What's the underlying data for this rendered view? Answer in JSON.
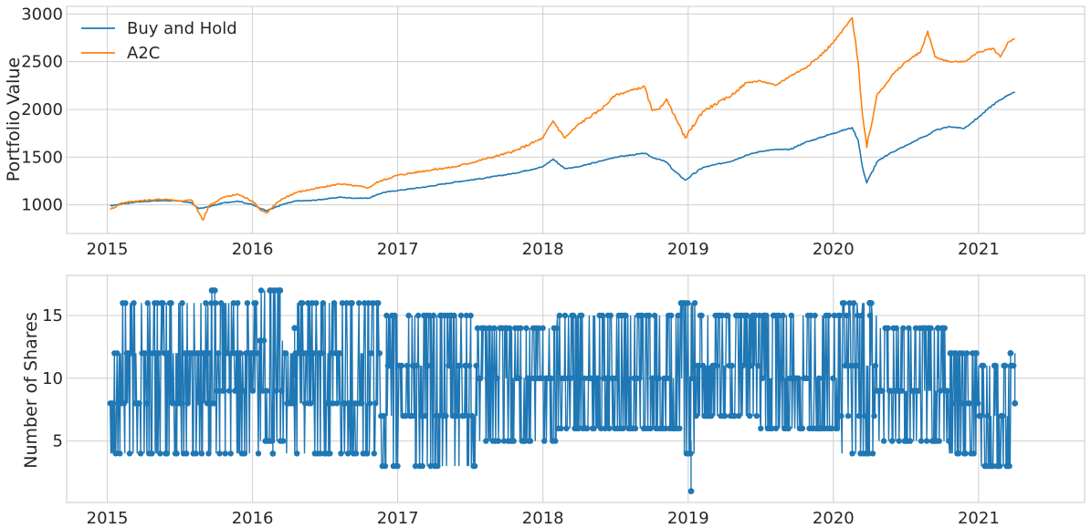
{
  "chart_data": [
    {
      "type": "line",
      "title": "",
      "xlabel": "",
      "ylabel": "Portfolio Value",
      "x_ticks": [
        "2015",
        "2016",
        "2017",
        "2018",
        "2019",
        "2020",
        "2021"
      ],
      "y_ticks": [
        1000,
        1500,
        2000,
        2500,
        3000
      ],
      "xlim": [
        2014.72,
        2021.73
      ],
      "ylim": [
        700,
        3080
      ],
      "grid": true,
      "legend": "top-left",
      "series": [
        {
          "name": "Buy and Hold",
          "color": "#1f77b4",
          "x": [
            2015.02,
            2015.1,
            2015.2,
            2015.3,
            2015.4,
            2015.5,
            2015.58,
            2015.63,
            2015.7,
            2015.8,
            2015.9,
            2016.0,
            2016.06,
            2016.1,
            2016.2,
            2016.3,
            2016.4,
            2016.5,
            2016.6,
            2016.7,
            2016.8,
            2016.85,
            2016.9,
            2017.0,
            2017.2,
            2017.4,
            2017.6,
            2017.8,
            2018.0,
            2018.07,
            2018.15,
            2018.25,
            2018.4,
            2018.5,
            2018.7,
            2018.75,
            2018.85,
            2018.9,
            2018.98,
            2019.1,
            2019.3,
            2019.4,
            2019.5,
            2019.6,
            2019.7,
            2019.8,
            2019.9,
            2020.0,
            2020.13,
            2020.17,
            2020.2,
            2020.23,
            2020.3,
            2020.4,
            2020.5,
            2020.6,
            2020.65,
            2020.7,
            2020.8,
            2020.9,
            2021.0,
            2021.1,
            2021.2,
            2021.25
          ],
          "y": [
            990,
            1010,
            1030,
            1040,
            1045,
            1040,
            1020,
            960,
            980,
            1020,
            1040,
            1000,
            960,
            940,
            1000,
            1040,
            1045,
            1060,
            1080,
            1070,
            1070,
            1100,
            1130,
            1150,
            1190,
            1240,
            1280,
            1330,
            1400,
            1480,
            1380,
            1400,
            1460,
            1500,
            1540,
            1500,
            1450,
            1360,
            1260,
            1390,
            1460,
            1520,
            1560,
            1580,
            1580,
            1650,
            1700,
            1750,
            1810,
            1680,
            1400,
            1230,
            1450,
            1550,
            1620,
            1700,
            1730,
            1780,
            1820,
            1800,
            1920,
            2050,
            2150,
            2180
          ]
        },
        {
          "name": "A2C",
          "color": "#ff7f0e",
          "x": [
            2015.02,
            2015.1,
            2015.2,
            2015.3,
            2015.4,
            2015.5,
            2015.58,
            2015.63,
            2015.66,
            2015.7,
            2015.8,
            2015.9,
            2016.0,
            2016.06,
            2016.1,
            2016.2,
            2016.3,
            2016.4,
            2016.5,
            2016.6,
            2016.7,
            2016.8,
            2016.85,
            2016.9,
            2017.0,
            2017.2,
            2017.4,
            2017.6,
            2017.8,
            2018.0,
            2018.07,
            2018.15,
            2018.25,
            2018.4,
            2018.5,
            2018.7,
            2018.75,
            2018.8,
            2018.85,
            2018.9,
            2018.98,
            2019.1,
            2019.3,
            2019.4,
            2019.5,
            2019.6,
            2019.7,
            2019.8,
            2019.9,
            2020.0,
            2020.1,
            2020.13,
            2020.17,
            2020.2,
            2020.23,
            2020.3,
            2020.4,
            2020.5,
            2020.6,
            2020.65,
            2020.7,
            2020.8,
            2020.9,
            2021.0,
            2021.1,
            2021.15,
            2021.2,
            2021.25
          ],
          "y": [
            950,
            1020,
            1040,
            1050,
            1060,
            1040,
            1050,
            920,
            840,
            990,
            1080,
            1110,
            1040,
            940,
            920,
            1060,
            1130,
            1160,
            1190,
            1220,
            1200,
            1180,
            1230,
            1260,
            1310,
            1360,
            1400,
            1480,
            1560,
            1700,
            1880,
            1700,
            1850,
            2000,
            2150,
            2240,
            1990,
            2000,
            2110,
            1950,
            1700,
            1980,
            2150,
            2280,
            2300,
            2250,
            2350,
            2430,
            2550,
            2700,
            2900,
            2960,
            2500,
            1950,
            1600,
            2150,
            2350,
            2500,
            2600,
            2820,
            2550,
            2500,
            2500,
            2600,
            2640,
            2550,
            2700,
            2740
          ]
        }
      ]
    },
    {
      "type": "line",
      "title": "",
      "xlabel": "",
      "ylabel": "Number of Shares",
      "x_ticks": [
        "2015",
        "2016",
        "2017",
        "2018",
        "2019",
        "2020",
        "2021"
      ],
      "y_ticks": [
        5,
        10,
        15
      ],
      "xlim": [
        2014.72,
        2021.73
      ],
      "ylim": [
        0.1,
        18.2
      ],
      "grid": true,
      "legend": "none",
      "marker": "o",
      "series": [
        {
          "color": "#1f77b4",
          "segments": [
            {
              "x0": 2015.02,
              "x1": 2015.75,
              "levels": [
                4,
                8,
                12,
                16
              ]
            },
            {
              "x0": 2015.75,
              "x1": 2016.05,
              "levels": [
                4,
                9,
                12,
                16
              ]
            },
            {
              "x0": 2016.05,
              "x1": 2016.22,
              "levels": [
                5,
                9,
                13,
                17
              ]
            },
            {
              "x0": 2016.22,
              "x1": 2016.88,
              "levels": [
                4,
                8,
                12,
                16
              ]
            },
            {
              "x0": 2016.88,
              "x1": 2017.55,
              "levels": [
                3,
                7,
                11,
                15
              ]
            },
            {
              "x0": 2017.55,
              "x1": 2018.1,
              "levels": [
                5,
                10,
                14
              ]
            },
            {
              "x0": 2018.1,
              "x1": 2018.95,
              "levels": [
                6,
                10,
                15
              ]
            },
            {
              "x0": 2018.95,
              "x1": 2019.05,
              "levels": [
                4,
                10,
                16
              ]
            },
            {
              "x0": 2019.05,
              "x1": 2019.5,
              "levels": [
                7,
                11,
                15
              ]
            },
            {
              "x0": 2019.5,
              "x1": 2020.05,
              "levels": [
                6,
                10,
                15
              ]
            },
            {
              "x0": 2020.05,
              "x1": 2020.3,
              "levels": [
                4,
                7,
                11,
                15,
                16
              ]
            },
            {
              "x0": 2020.3,
              "x1": 2020.8,
              "levels": [
                5,
                9,
                14
              ]
            },
            {
              "x0": 2020.8,
              "x1": 2021.0,
              "levels": [
                4,
                8,
                12
              ]
            },
            {
              "x0": 2021.0,
              "x1": 2021.25,
              "levels": [
                3,
                7,
                11
              ]
            }
          ],
          "outliers": [
            {
              "x": 2015.72,
              "y": 17
            },
            {
              "x": 2015.74,
              "y": 17
            },
            {
              "x": 2016.12,
              "y": 17
            },
            {
              "x": 2016.19,
              "y": 17
            },
            {
              "x": 2016.14,
              "y": 4
            },
            {
              "x": 2016.29,
              "y": 14
            },
            {
              "x": 2019.02,
              "y": 1
            },
            {
              "x": 2019.9,
              "y": 6
            },
            {
              "x": 2020.25,
              "y": 16
            },
            {
              "x": 2020.72,
              "y": 14
            },
            {
              "x": 2021.22,
              "y": 12
            },
            {
              "x": 2021.25,
              "y": 8
            }
          ]
        }
      ]
    }
  ]
}
